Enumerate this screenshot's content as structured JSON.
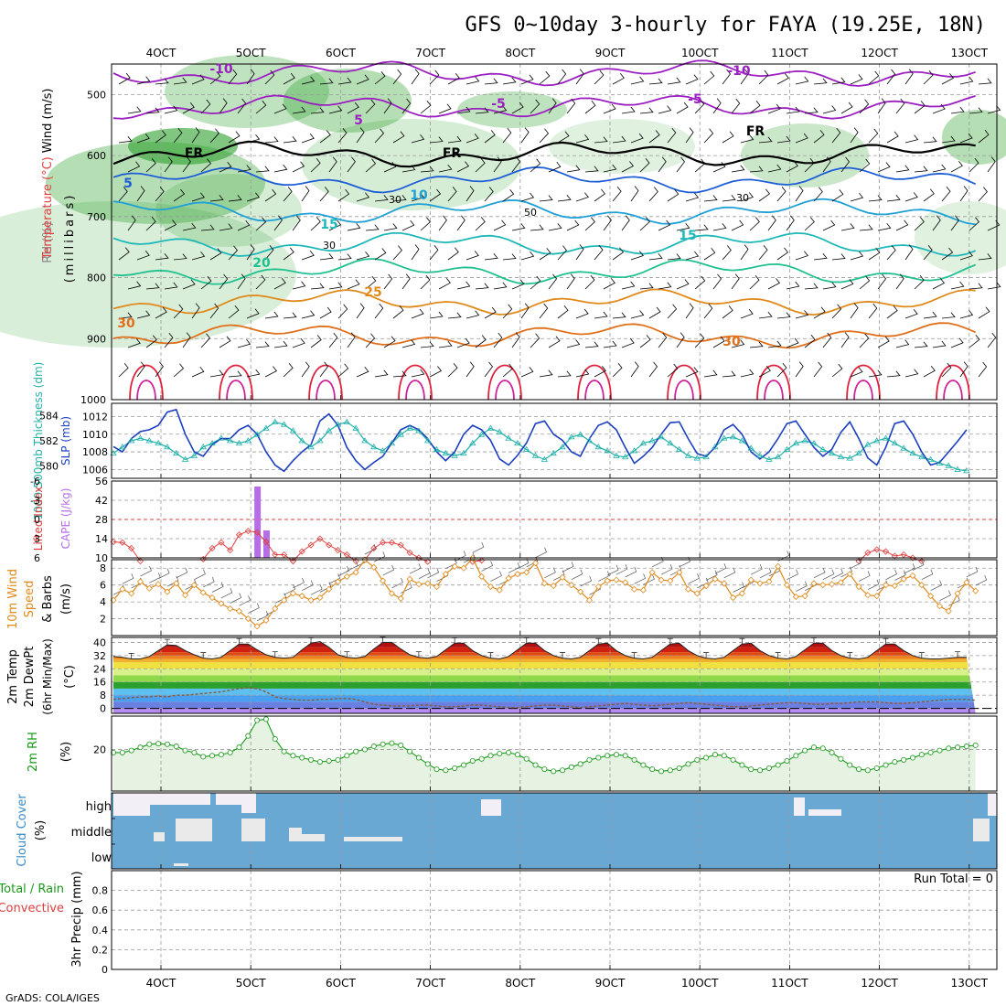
{
  "title": "GFS 0~10day 3-hourly for FAYA (19.25E, 18N)",
  "credit": "GrADS: COLA/IGES",
  "run_total": "Run Total = 0",
  "dates": [
    "4OCT",
    "5OCT",
    "6OCT",
    "7OCT",
    "8OCT",
    "9OCT",
    "10OCT",
    "11OCT",
    "12OCT",
    "13OCT"
  ],
  "panel_labels": {
    "upper": {
      "wind": "Wind (m/s)",
      "temp": "Temperature (°C)",
      "rh": "RH (%)",
      "pres": "(millibars)"
    },
    "slp": {
      "thick": "1000-500mb Thickness (dm)",
      "slp": "SLP (mb)"
    },
    "cape": {
      "li": "Lifted Index",
      "cape": "CAPE (J/kg)"
    },
    "wind10": {
      "l1": "10m Wind",
      "l2": "Speed",
      "l3": "& Barbs",
      "unit": "(m/s)"
    },
    "temp2m": {
      "l1": "2m Temp",
      "l2": "2m DewPt",
      "l3": "(6hr Min/Max)",
      "unit": "(°C)"
    },
    "rh2m": {
      "l1": "2m RH",
      "unit": "(%)"
    },
    "cloud": {
      "l1": "Cloud Cover",
      "unit": "(%)",
      "high": "high",
      "middle": "middle",
      "low": "low"
    },
    "precip": {
      "l1": "Total / Rain",
      "l2": "Convective",
      "l3": "3hr Precip (mm)"
    }
  },
  "colors": {
    "thickness": "#20b2aa",
    "slp": "#1b3fbf",
    "li": "#e03c3c",
    "cape": "#b56ee6",
    "wind10": "#e08a1c",
    "rh2m": "#1a9a1a",
    "cloud": "#6aa8d4"
  },
  "chart_data": [
    {
      "type": "contour",
      "name": "upper",
      "y_ticks": [
        "500",
        "600",
        "700",
        "800",
        "900",
        "1000"
      ],
      "ylim": [
        450,
        1000
      ],
      "contour_labels": [
        "-10",
        "-10",
        "-5",
        "-5",
        "5",
        "5",
        "10",
        "15",
        "15",
        "20",
        "25",
        "30",
        "30",
        "FR",
        "FR",
        "FR",
        "30",
        "50",
        "30",
        "30"
      ],
      "isotherms": [
        {
          "label": "-10",
          "hpa": 465,
          "color": "#9b1fc1"
        },
        {
          "label": "-5",
          "hpa": 520,
          "color": "#9b1fc1"
        },
        {
          "label": "0",
          "hpa": 598,
          "color": "#000000"
        },
        {
          "label": "5",
          "hpa": 640,
          "color": "#1f5fd6"
        },
        {
          "label": "10",
          "hpa": 692,
          "color": "#1fa0d6"
        },
        {
          "label": "15",
          "hpa": 745,
          "color": "#1fb8b8"
        },
        {
          "label": "20",
          "hpa": 790,
          "color": "#20c090"
        },
        {
          "label": "25",
          "hpa": 840,
          "color": "#e08a1c"
        },
        {
          "label": "30",
          "hpa": 895,
          "color": "#e0701c"
        }
      ]
    },
    {
      "type": "line",
      "name": "thickness_slp",
      "left_ticks": [
        "584",
        "582",
        "580"
      ],
      "right_ticks": [
        "1012",
        "1010",
        "1008",
        "1006"
      ],
      "ylim_thickness": [
        579,
        585
      ],
      "ylim_slp": [
        1005,
        1013.5
      ],
      "series": [
        {
          "name": "SLP (mb)",
          "values": [
            1008.6,
            1008,
            1009.5,
            1010.3,
            1010.5,
            1011,
            1012.5,
            1012.8,
            1010,
            1008,
            1007.5,
            1008.8,
            1009.5,
            1009.5,
            1010.5,
            1011,
            1010,
            1008,
            1006.5,
            1005.8,
            1007,
            1008,
            1008.8,
            1011.5,
            1012.3,
            1011,
            1008.5,
            1007,
            1006,
            1006.8,
            1007.5,
            1009,
            1010.5,
            1011,
            1010.5,
            1009.5,
            1008,
            1007,
            1008,
            1010,
            1011,
            1010.5,
            1009.3,
            1007.2,
            1006.5,
            1007.6,
            1009,
            1011.2,
            1011.5,
            1010,
            1009.3,
            1008,
            1007.5,
            1009.5,
            1011,
            1011.4,
            1010.5,
            1008.5,
            1006.7,
            1007.5,
            1008.5,
            1010,
            1011.3,
            1011.4,
            1009.5,
            1007.8,
            1007.5,
            1008.5,
            1010.5,
            1011.1,
            1010,
            1008,
            1007.2,
            1008,
            1009.5,
            1011.2,
            1011.5,
            1010,
            1008.5,
            1007.5,
            1008.3,
            1010.2,
            1011.4,
            1009.5,
            1007.3,
            1006.5,
            1008.5,
            1011.2,
            1011.5,
            1010,
            1008,
            1006.5,
            1006.8,
            1008,
            1009.2,
            1010.5
          ]
        },
        {
          "name": "1000-500mb Thickness (dm)",
          "values": [
            581,
            581.5,
            582,
            582.2,
            582,
            581.8,
            581.5,
            581,
            580.5,
            580.8,
            581.5,
            581.8,
            582.2,
            582,
            581.8,
            582,
            582.5,
            583,
            583.5,
            583.3,
            582.8,
            582,
            581.5,
            582,
            582.8,
            583.3,
            583.5,
            583,
            582,
            581.5,
            581.2,
            581.8,
            582.5,
            583,
            582.8,
            582,
            581.3,
            581,
            580.8,
            581,
            581.8,
            582.5,
            583,
            582.7,
            582.2,
            581.8,
            581.3,
            580.8,
            580.5,
            581,
            581.5,
            582.3,
            582.5,
            582,
            581.5,
            581.2,
            580.8,
            580.7,
            581.2,
            581.8,
            582,
            582.3,
            581.8,
            581.3,
            580.8,
            580.6,
            580.7,
            581.5,
            582.2,
            582.3,
            582,
            581.4,
            580.8,
            580.5,
            580.7,
            581.3,
            581.8,
            582,
            581.8,
            581.3,
            581,
            580.7,
            580.6,
            581,
            581.7,
            582,
            582.2,
            581.8,
            581.4,
            581,
            580.7,
            580.5,
            580.2,
            580,
            579.7,
            579.6
          ]
        }
      ]
    },
    {
      "type": "bar",
      "name": "cape_li",
      "left_ticks": [
        "-6",
        "-3",
        "0",
        "3",
        "6"
      ],
      "right_ticks": [
        "56",
        "42",
        "28",
        "14",
        "10"
      ],
      "ylim_cape": [
        0,
        56
      ],
      "li_segments": [
        {
          "x": [
            0,
            1,
            2,
            3
          ],
          "values": [
            3.5,
            3.6,
            4.5,
            6.5
          ]
        },
        {
          "x": [
            10,
            11,
            12,
            13,
            14,
            15,
            16,
            17,
            18,
            19,
            20
          ],
          "values": [
            6.2,
            4.5,
            3.6,
            4.8,
            2.4,
            1.8,
            2.0,
            3.5,
            5.5,
            5.5,
            6.5
          ]
        },
        {
          "x": [
            20,
            21,
            22,
            23,
            24,
            25,
            26,
            27
          ],
          "values": [
            6.5,
            5.0,
            4.0,
            3.0,
            4.0,
            4.8,
            5.5,
            6.5
          ]
        },
        {
          "x": [
            28,
            29,
            30,
            31,
            32,
            33,
            34,
            35
          ],
          "values": [
            6.3,
            4.5,
            3.6,
            3.6,
            4.0,
            5.2,
            6.0,
            6.6
          ]
        },
        {
          "x": [
            40,
            41
          ],
          "values": [
            6.6,
            6.4
          ]
        },
        {
          "x": [
            83,
            84,
            85,
            86,
            87,
            88,
            89,
            90
          ],
          "values": [
            6.5,
            5.2,
            4.7,
            5.0,
            5.7,
            5.5,
            6.0,
            6.5
          ]
        }
      ],
      "cape_bars": [
        {
          "x": 16,
          "value": 52
        },
        {
          "x": 17,
          "value": 20
        }
      ]
    },
    {
      "type": "line",
      "name": "wind10m",
      "y_ticks": [
        "8",
        "6",
        "4",
        "2"
      ],
      "ylim": [
        0,
        9
      ],
      "series": [
        {
          "name": "10m Wind Speed (m/s)",
          "values": [
            4.2,
            5.5,
            5.0,
            6.4,
            5.6,
            6.1,
            5.2,
            6.2,
            4.8,
            6.0,
            5.1,
            4.5,
            3.8,
            3.2,
            2.9,
            2.0,
            1.1,
            1.8,
            3.2,
            4.2,
            5.0,
            4.7,
            4.2,
            4.5,
            5.5,
            6.4,
            7.0,
            7.5,
            9.0,
            8.1,
            6.5,
            5.0,
            4.4,
            6.7,
            6.1,
            6.2,
            5.8,
            7.3,
            8.2,
            8.0,
            9.2,
            7.0,
            5.8,
            5.4,
            6.8,
            7.3,
            7.5,
            8.6,
            6.2,
            5.9,
            6.9,
            6.0,
            5.2,
            4.2,
            5.8,
            6.5,
            6.6,
            6.3,
            5.5,
            5.4,
            7.5,
            6.6,
            6.5,
            7.5,
            5.5,
            5.0,
            5.9,
            6.7,
            6.2,
            4.5,
            5.0,
            6.6,
            6.2,
            6.4,
            8.2,
            6.0,
            4.6,
            4.7,
            6.2,
            6.0,
            6.1,
            6.3,
            7.3,
            5.8,
            4.8,
            4.7,
            6.0,
            5.9,
            6.7,
            7.1,
            6.0,
            4.7,
            3.5,
            2.9,
            5.0,
            6.3,
            5.3
          ]
        }
      ]
    },
    {
      "type": "area",
      "name": "temp2m",
      "y_ticks": [
        "40",
        "32",
        "24",
        "16",
        "8",
        "0"
      ],
      "ylim": [
        -3,
        43
      ],
      "series": [
        {
          "name": "2m Temp (°C)",
          "values": [
            31.5,
            31.0,
            30.0,
            30.0,
            31.5,
            35.0,
            38.5,
            38.2,
            35.0,
            32.5,
            30.5,
            30.0,
            31.0,
            35.0,
            39.0,
            39.0,
            35.5,
            32.5,
            31.0,
            30.5,
            31.0,
            35.5,
            39.5,
            40.5,
            37.0,
            32.5,
            31.0,
            30.5,
            31.5,
            36.0,
            40.0,
            40.0,
            36.0,
            32.5,
            31.0,
            30.5,
            31.5,
            35.5,
            39.5,
            39.5,
            35.0,
            32.0,
            30.5,
            30.0,
            31.5,
            35.5,
            39.5,
            39.5,
            35.0,
            32.0,
            30.5,
            30.0,
            31.0,
            35.0,
            39.0,
            39.5,
            35.0,
            32.0,
            30.5,
            30.0,
            31.0,
            35.0,
            39.0,
            39.5,
            35.0,
            32.0,
            30.5,
            30.0,
            31.0,
            35.0,
            39.0,
            39.5,
            35.0,
            32.0,
            30.5,
            30.0,
            31.5,
            35.5,
            39.5,
            39.5,
            35.0,
            32.0,
            30.5,
            30.0,
            31.0,
            35.0,
            39.0,
            39.0,
            35.0,
            32.0,
            30.5,
            30.0,
            30.0,
            30.5,
            31.0,
            31.0
          ]
        },
        {
          "name": "2m DewPt (°C)",
          "values": [
            5.5,
            6.0,
            6.5,
            7.0,
            7.0,
            7.5,
            7.0,
            8.0,
            8.0,
            8.5,
            9.0,
            9.5,
            10.0,
            11.0,
            12.0,
            12.5,
            12.0,
            10.0,
            7.0,
            6.0,
            5.5,
            5.0,
            5.0,
            5.5,
            5.5,
            6.0,
            6.0,
            5.5,
            4.0,
            2.5,
            2.0,
            1.5,
            1.5,
            1.5,
            2.0,
            2.0,
            1.5,
            1.0,
            1.0,
            1.5,
            2.0,
            2.0,
            1.5,
            1.0,
            0.5,
            0.5,
            1.0,
            1.5,
            2.0,
            2.0,
            1.5,
            1.0,
            0.5,
            1.0,
            1.5,
            2.0,
            2.5,
            3.0,
            2.5,
            2.0,
            1.5,
            2.0,
            2.5,
            3.0,
            3.5,
            3.0,
            2.5,
            2.0,
            1.5,
            1.0,
            1.0,
            1.5,
            2.0,
            2.5,
            3.0,
            3.5,
            3.5,
            3.0,
            2.5,
            2.5,
            3.0,
            3.0,
            3.5,
            4.0,
            4.0,
            4.0,
            3.5,
            3.0,
            3.0,
            3.5,
            4.0,
            4.5,
            5.0,
            5.5,
            5.5,
            5.5,
            5.0
          ]
        }
      ]
    },
    {
      "type": "line",
      "name": "rh2m",
      "y_ticks": [
        "20"
      ],
      "ylim": [
        0,
        36
      ],
      "series": [
        {
          "name": "2m RH (%)",
          "values": [
            18.5,
            18.5,
            19.5,
            21.0,
            22.5,
            22.8,
            22.5,
            21.5,
            19.5,
            18.5,
            16.5,
            17.0,
            17.5,
            18.5,
            21.0,
            26.5,
            34.0,
            34.5,
            25.0,
            19.0,
            17.0,
            16.0,
            15.0,
            14.0,
            14.5,
            15.0,
            17.0,
            19.0,
            20.0,
            21.5,
            22.5,
            23.0,
            22.0,
            19.0,
            16.0,
            13.0,
            10.5,
            10.0,
            11.0,
            12.5,
            14.5,
            15.5,
            17.0,
            18.0,
            18.5,
            17.5,
            15.5,
            12.5,
            10.5,
            9.5,
            10.0,
            11.5,
            13.0,
            15.0,
            16.0,
            17.0,
            17.5,
            17.0,
            15.0,
            12.5,
            10.5,
            9.5,
            10.0,
            11.0,
            13.0,
            15.0,
            16.0,
            17.5,
            17.0,
            15.0,
            12.5,
            10.5,
            10.0,
            11.0,
            12.5,
            14.5,
            17.0,
            19.5,
            21.0,
            20.5,
            18.5,
            15.5,
            12.5,
            10.5,
            10.0,
            11.0,
            12.5,
            14.0,
            15.0,
            16.0,
            17.5,
            18.5,
            19.5,
            20.5,
            21.0,
            21.5,
            22.0
          ]
        }
      ]
    },
    {
      "type": "heatmap",
      "name": "cloud_cover",
      "y_ticks": [
        "high",
        "middle",
        "low"
      ],
      "note": "mostly overcast blue; clear gaps in white"
    },
    {
      "type": "line",
      "name": "precip",
      "y_ticks": [
        "0.8",
        "0.6",
        "0.4",
        "0.2",
        "0"
      ],
      "ylim": [
        0,
        1.0
      ],
      "series": [
        {
          "name": "3hr Precip (mm)",
          "values": [
            0
          ]
        }
      ]
    }
  ]
}
